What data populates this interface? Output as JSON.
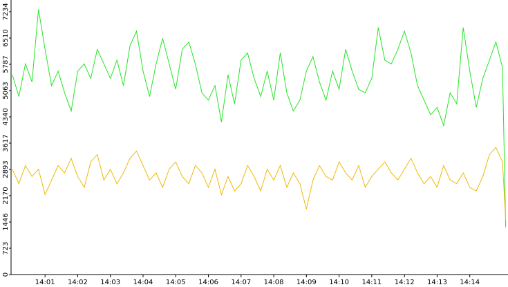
{
  "chart_data": {
    "type": "line",
    "x": [
      0,
      0.2,
      0.4,
      0.6,
      0.8,
      1,
      1.2,
      1.4,
      1.6,
      1.8,
      2,
      2.2,
      2.4,
      2.6,
      2.8,
      3,
      3.2,
      3.4,
      3.6,
      3.8,
      4,
      4.2,
      4.4,
      4.6,
      4.8,
      5,
      5.2,
      5.4,
      5.6,
      5.8,
      6,
      6.2,
      6.4,
      6.6,
      6.8,
      7,
      7.2,
      7.4,
      7.6,
      7.8,
      8,
      8.2,
      8.4,
      8.6,
      8.8,
      9,
      9.2,
      9.4,
      9.6,
      9.8,
      10,
      10.2,
      10.4,
      10.6,
      10.8,
      11,
      11.2,
      11.4,
      11.6,
      11.8,
      12,
      12.2,
      12.4,
      12.6,
      12.8,
      13,
      13.2,
      13.4,
      13.6,
      13.8,
      14,
      14.2,
      14.4,
      14.6,
      14.8,
      15,
      15.1
    ],
    "series": [
      {
        "color": "#22e622",
        "values": [
          5500,
          4900,
          5800,
          5300,
          7300,
          6200,
          5200,
          5600,
          5000,
          4500,
          5600,
          5800,
          5400,
          6200,
          5800,
          5400,
          5900,
          5200,
          6300,
          6700,
          5600,
          4900,
          5800,
          6500,
          5800,
          5100,
          6200,
          6400,
          5800,
          5000,
          4800,
          5200,
          4200,
          5500,
          4700,
          5900,
          6100,
          5400,
          4900,
          5600,
          4800,
          6100,
          5000,
          4500,
          4800,
          5600,
          6000,
          5300,
          4800,
          5600,
          5100,
          6200,
          5600,
          5100,
          5000,
          5400,
          6800,
          5900,
          5800,
          6200,
          6700,
          6100,
          5200,
          4800,
          4400,
          4600,
          4100,
          5000,
          4700,
          6800,
          5600,
          4600,
          5400,
          5900,
          6400,
          5700,
          1300
        ]
      },
      {
        "color": "#f0b800",
        "values": [
          2900,
          2500,
          3000,
          2700,
          2900,
          2200,
          2600,
          3000,
          2800,
          3200,
          2700,
          2400,
          3100,
          3300,
          2600,
          2900,
          2500,
          2800,
          3200,
          3400,
          3000,
          2600,
          2800,
          2400,
          2900,
          3100,
          2700,
          2500,
          3000,
          2800,
          2400,
          2900,
          2200,
          2700,
          2300,
          2500,
          3000,
          2700,
          2300,
          2900,
          2600,
          3000,
          2400,
          2800,
          2500,
          1800,
          2600,
          3000,
          2700,
          2600,
          3100,
          2800,
          2600,
          3000,
          2400,
          2700,
          2900,
          3100,
          2800,
          2600,
          2900,
          3200,
          2800,
          2500,
          2700,
          2400,
          3000,
          2600,
          2500,
          2800,
          2400,
          2300,
          2700,
          3300,
          3500,
          3100,
          1500
        ]
      }
    ],
    "xlim": [
      -0.04,
      15.17
    ],
    "xticks": [
      {
        "value": 1,
        "label": "14:01"
      },
      {
        "value": 2,
        "label": "14:02"
      },
      {
        "value": 3,
        "label": "14:03"
      },
      {
        "value": 4,
        "label": "14:04"
      },
      {
        "value": 5,
        "label": "14:05"
      },
      {
        "value": 6,
        "label": "14:06"
      },
      {
        "value": 7,
        "label": "14:07"
      },
      {
        "value": 8,
        "label": "14:08"
      },
      {
        "value": 9,
        "label": "14:09"
      },
      {
        "value": 10,
        "label": "14:10"
      },
      {
        "value": 11,
        "label": "14:11"
      },
      {
        "value": 12,
        "label": "14:12"
      },
      {
        "value": 13,
        "label": "14:13"
      },
      {
        "value": 14,
        "label": "14:14"
      }
    ],
    "ylim": [
      0,
      7557
    ],
    "yticks": [
      0,
      723,
      1446,
      2170,
      2893,
      3617,
      4340,
      5063,
      5787,
      6510,
      7234
    ]
  }
}
